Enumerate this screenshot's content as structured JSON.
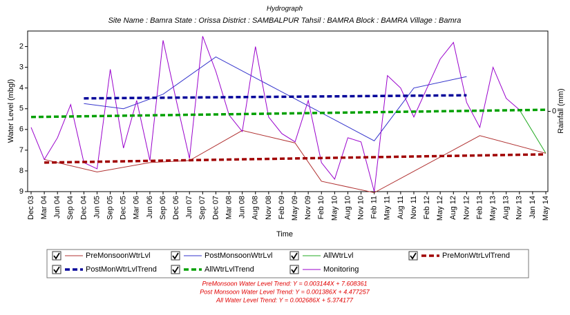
{
  "chart_data": {
    "type": "line",
    "title": "Hydrograph",
    "subtitle": "Site Name : Bamra  State : Orissa District : SAMBALPUR  Tahsil : BAMRA  Block : BAMRA Village : Bamra",
    "x_label": "Time",
    "y_label": "Water Level (mbgl)",
    "y2_label": "Rainfall (mm)",
    "y_inverted": true,
    "ylim": [
      1.25,
      9
    ],
    "yticks": [
      2,
      3,
      4,
      5,
      6,
      7,
      8,
      9
    ],
    "y2lim": [
      -1,
      1
    ],
    "y2ticks": [
      0
    ],
    "categories": [
      "Dec 03",
      "Mar 04",
      "Jun 04",
      "Sep 04",
      "Dec 04",
      "Jun 05",
      "Sep 05",
      "Dec 05",
      "Mar 06",
      "Jun 06",
      "Sep 06",
      "Dec 06",
      "Jun 07",
      "Sep 07",
      "Dec 07",
      "Mar 08",
      "Jun 08",
      "Aug 08",
      "Nov 08",
      "Feb 09",
      "May 09",
      "Nov 09",
      "Feb 10",
      "May 10",
      "Aug 10",
      "Nov 10",
      "Feb 11",
      "May 11",
      "Aug 11",
      "Nov 11",
      "Feb 12",
      "May 12",
      "Aug 12",
      "Nov 12",
      "Feb 13",
      "May 13",
      "Aug 13",
      "Nov 13",
      "Jan 14",
      "May 14"
    ],
    "series": [
      {
        "name": "PreMonsoonWtrLvl",
        "color": "#b03030",
        "style": "solid",
        "x": [
          "Mar 04",
          "Jun 05",
          "Jun 06",
          "Jun 07",
          "Jun 08",
          "May 09",
          "Feb 10",
          "Feb 11",
          "Feb 13",
          "May 14"
        ],
        "values": [
          7.45,
          8.05,
          7.6,
          7.5,
          6.05,
          6.65,
          8.5,
          9.05,
          6.3,
          7.15
        ]
      },
      {
        "name": "PostMonsoonWtrLvl",
        "color": "#3333cc",
        "style": "solid",
        "x": [
          "Dec 04",
          "Dec 05",
          "Sep 06",
          "Dec 07",
          "Feb 11",
          "Nov 11",
          "Nov 12"
        ],
        "values": [
          4.75,
          5.0,
          4.3,
          2.5,
          6.55,
          4.0,
          3.45
        ]
      },
      {
        "name": "AllWtrLvl",
        "color": "#22aa22",
        "style": "solid",
        "x": [
          "Nov 13",
          "May 14"
        ],
        "values": [
          5.05,
          7.15
        ]
      },
      {
        "name": "PreMonWtrLvlTrend",
        "color": "#a00000",
        "style": "dashed",
        "x": [
          "Mar 04",
          "May 14"
        ],
        "values": [
          7.6,
          7.2
        ]
      },
      {
        "name": "PostMonWtrLvlTrend",
        "color": "#000099",
        "style": "dashed",
        "x": [
          "Dec 04",
          "Nov 12"
        ],
        "values": [
          4.5,
          4.35
        ]
      },
      {
        "name": "AllWtrLvlTrend",
        "color": "#00a000",
        "style": "dashed",
        "x": [
          "Dec 03",
          "May 14"
        ],
        "values": [
          5.4,
          5.05
        ]
      },
      {
        "name": "Monitoring",
        "color": "#9900cc",
        "style": "solid",
        "x": [
          "Dec 03",
          "Mar 04",
          "Jun 04",
          "Sep 04",
          "Dec 04",
          "Jun 05",
          "Sep 05",
          "Dec 05",
          "Mar 06",
          "Jun 06",
          "Sep 06",
          "Dec 06",
          "Jun 07",
          "Sep 07",
          "Dec 07",
          "Mar 08",
          "Jun 08",
          "Aug 08",
          "Nov 08",
          "Feb 09",
          "May 09",
          "Nov 09",
          "Feb 10",
          "May 10",
          "Aug 10",
          "Nov 10",
          "Feb 11",
          "May 11",
          "Aug 11",
          "Nov 11",
          "Feb 12",
          "May 12",
          "Aug 12",
          "Nov 12",
          "Feb 13",
          "May 13",
          "Aug 13",
          "Nov 13"
        ],
        "values": [
          5.9,
          7.45,
          6.4,
          4.8,
          7.6,
          7.9,
          3.1,
          6.9,
          4.6,
          7.5,
          1.7,
          4.6,
          7.4,
          1.5,
          3.2,
          5.3,
          6.1,
          2.0,
          5.4,
          6.2,
          6.6,
          4.6,
          7.6,
          8.4,
          6.4,
          6.6,
          9.0,
          3.4,
          4.0,
          5.4,
          4.0,
          2.6,
          1.8,
          4.7,
          5.9,
          3.0,
          4.5,
          5.05
        ]
      }
    ],
    "footnotes": [
      "PreMonsoon Water Level Trend: Y = 0.003144X + 7.608361",
      "Post Monsoon Water Level Trend: Y = 0.001386X + 4.477257",
      "All Water Level Trend: Y = 0.002686X + 5.374177"
    ]
  }
}
